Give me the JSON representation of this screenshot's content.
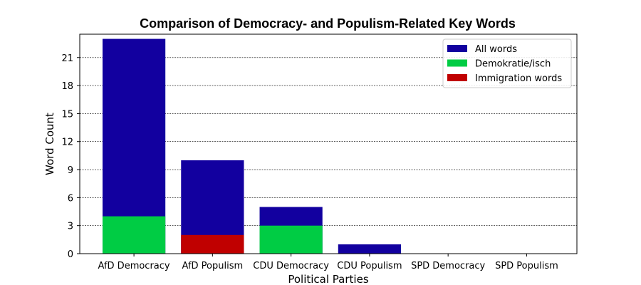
{
  "chart_data": {
    "type": "bar",
    "title": "Comparison of Democracy- and Populism-Related Key Words",
    "xlabel": "Political Parties",
    "ylabel": "Word Count",
    "categories": [
      "AfD Democracy",
      "AfD Populism",
      "CDU Democracy",
      "CDU Populism",
      "SPD Democracy",
      "SPD Populism"
    ],
    "ylim": [
      0,
      23.5
    ],
    "yticks": [
      0,
      3,
      6,
      9,
      12,
      15,
      18,
      21
    ],
    "grid": true,
    "legend_position": "top-right",
    "series": [
      {
        "name": "All words",
        "color": "#12009f",
        "values": [
          23,
          10,
          5,
          1,
          0,
          0
        ]
      },
      {
        "name": "Demokratie/isch",
        "color": "#00cc44",
        "values": [
          4,
          0,
          3,
          0,
          0,
          0
        ]
      },
      {
        "name": "Immigration words",
        "color": "#c00000",
        "values": [
          0,
          2,
          0,
          0,
          0,
          0
        ]
      }
    ]
  }
}
